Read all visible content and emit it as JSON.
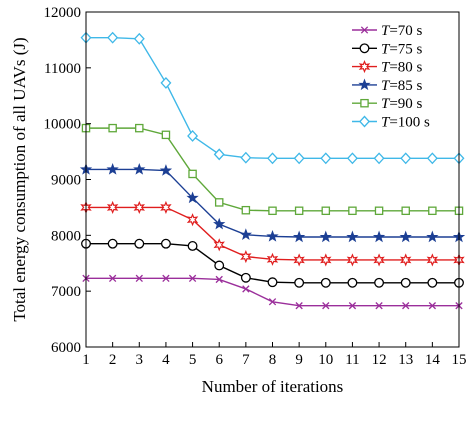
{
  "chart_data": {
    "type": "line",
    "title": "",
    "xlabel": "Number of iterations",
    "ylabel": "Total energy consumption of all UAVs (J)",
    "xlim": [
      1,
      15
    ],
    "ylim": [
      6000,
      12000
    ],
    "x": [
      1,
      2,
      3,
      4,
      5,
      6,
      7,
      8,
      9,
      10,
      11,
      12,
      13,
      14,
      15
    ],
    "xticks": [
      "1",
      "2",
      "3",
      "4",
      "5",
      "6",
      "7",
      "8",
      "9",
      "10",
      "11",
      "12",
      "13",
      "14",
      "15"
    ],
    "yticks": [
      "6000",
      "7000",
      "8000",
      "9000",
      "10000",
      "11000",
      "12000"
    ],
    "grid": false,
    "legend_position": "top-right",
    "series": [
      {
        "name": "T=70 s",
        "legend_italic": "T",
        "legend_rest": "=70 s",
        "color": "#9b2f9b",
        "marker": "x",
        "values": [
          7230,
          7230,
          7230,
          7230,
          7230,
          7210,
          7040,
          6810,
          6740,
          6740,
          6740,
          6740,
          6740,
          6740,
          6740
        ]
      },
      {
        "name": "T=75 s",
        "legend_italic": "T",
        "legend_rest": "=75 s",
        "color": "#000000",
        "marker": "circle",
        "values": [
          7850,
          7850,
          7850,
          7850,
          7810,
          7460,
          7240,
          7160,
          7150,
          7150,
          7150,
          7150,
          7150,
          7150,
          7150
        ]
      },
      {
        "name": "T=80 s",
        "legend_italic": "T",
        "legend_rest": "=80 s",
        "color": "#e01e1e",
        "marker": "star6",
        "values": [
          8500,
          8500,
          8500,
          8500,
          8280,
          7830,
          7620,
          7570,
          7560,
          7560,
          7560,
          7560,
          7560,
          7560,
          7560
        ]
      },
      {
        "name": "T=85 s",
        "legend_italic": "T",
        "legend_rest": "=85 s",
        "color": "#1c3f94",
        "marker": "star5",
        "values": [
          9180,
          9180,
          9180,
          9160,
          8670,
          8200,
          8010,
          7980,
          7970,
          7970,
          7970,
          7970,
          7970,
          7970,
          7970
        ]
      },
      {
        "name": "T=90 s",
        "legend_italic": "T",
        "legend_rest": "=90 s",
        "color": "#5fa83a",
        "marker": "square",
        "values": [
          9920,
          9920,
          9920,
          9800,
          9100,
          8590,
          8450,
          8440,
          8440,
          8440,
          8440,
          8440,
          8440,
          8440,
          8440
        ]
      },
      {
        "name": "T=100 s",
        "legend_italic": "T",
        "legend_rest": "=100 s",
        "color": "#3fb8e8",
        "marker": "diamond",
        "values": [
          11540,
          11540,
          11520,
          10730,
          9780,
          9450,
          9390,
          9380,
          9380,
          9380,
          9380,
          9380,
          9380,
          9380,
          9380
        ]
      }
    ]
  }
}
